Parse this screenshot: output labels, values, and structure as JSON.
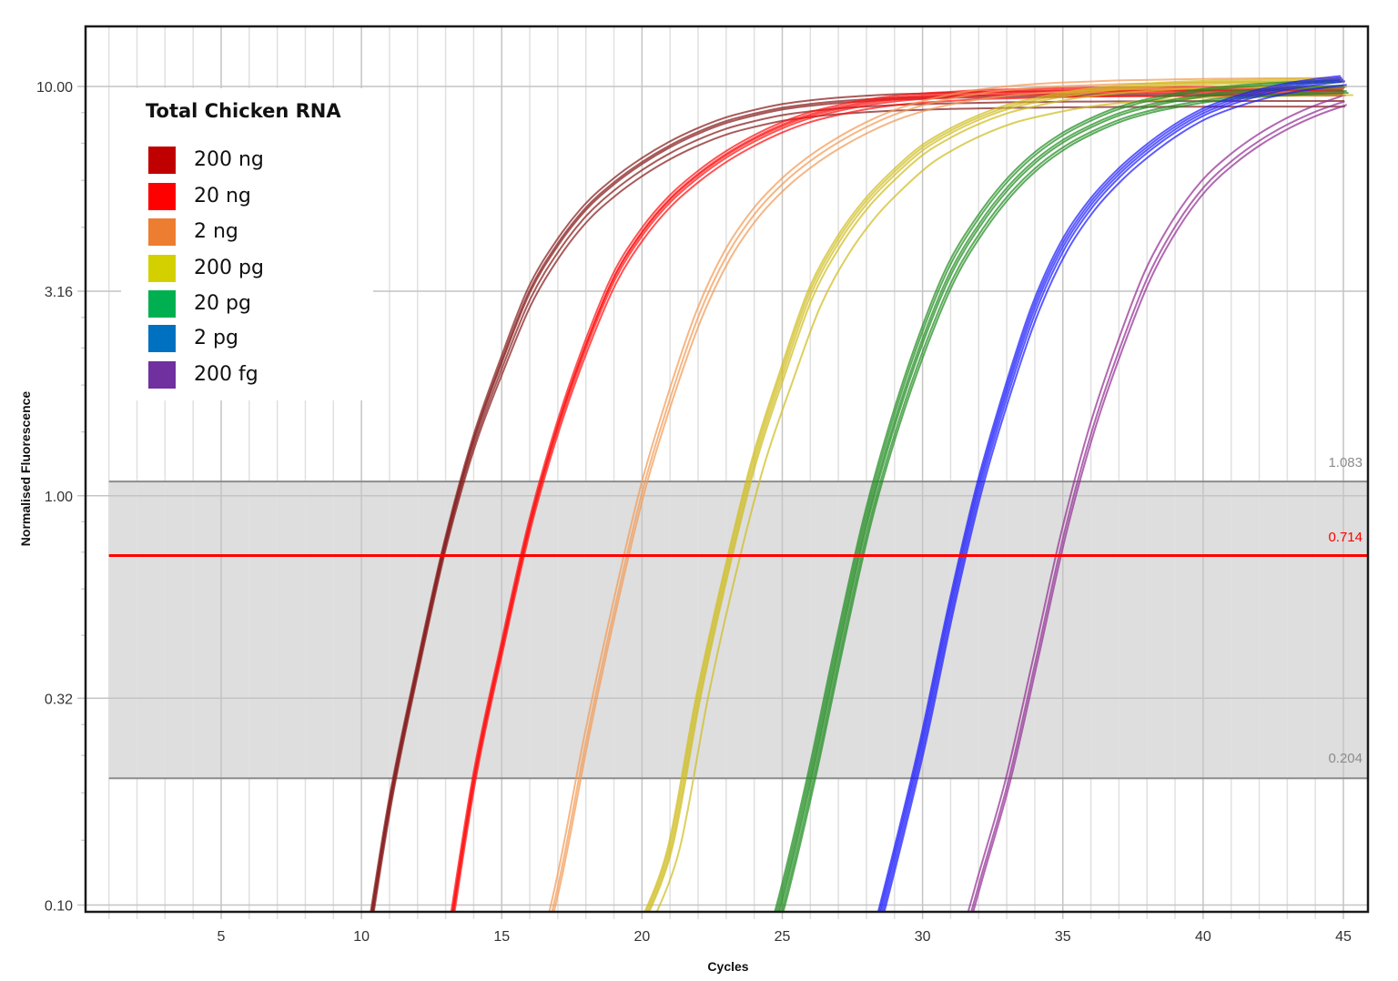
{
  "chart_data": {
    "type": "line",
    "title": "",
    "xlabel": "Cycles",
    "ylabel": "Normalised Fluorescence",
    "yscale": "log",
    "xlim": [
      1,
      45
    ],
    "ylim": [
      0.1,
      10
    ],
    "grid": true,
    "x_ticks": [
      {
        "value": 5,
        "label": "5"
      },
      {
        "value": 10,
        "label": "10"
      },
      {
        "value": 15,
        "label": "15"
      },
      {
        "value": 20,
        "label": "20"
      },
      {
        "value": 25,
        "label": "25"
      },
      {
        "value": 30,
        "label": "30"
      },
      {
        "value": 35,
        "label": "35"
      },
      {
        "value": 40,
        "label": "40"
      },
      {
        "value": 45,
        "label": "45"
      }
    ],
    "y_ticks": [
      {
        "value": 10,
        "label": "10.00"
      },
      {
        "value": 3.16,
        "label": "3.16"
      },
      {
        "value": 1,
        "label": "1.00"
      },
      {
        "value": 0.32,
        "label": "0.32"
      },
      {
        "value": 0.1,
        "label": "0.10"
      }
    ],
    "legend": {
      "title": "Total Chicken RNA",
      "position": "upper left"
    },
    "threshold": {
      "value": 0.714,
      "label": "0.714",
      "color": "#ff0000"
    },
    "threshold_band": {
      "upper": 1.083,
      "lower": 0.204,
      "upper_label": "1.083",
      "lower_label": "0.204",
      "fill": "#dedede",
      "edge_color": "#8c8c8c"
    },
    "series": [
      {
        "name": "200 ng",
        "legend_color": "#c00000",
        "line_color": "#861c1c",
        "ct": 12.88,
        "start_cycle": 10,
        "values": [
          0.065,
          0.176,
          0.38,
          0.77,
          1.36,
          2.11,
          3.13,
          4.08,
          4.99,
          5.76,
          6.46,
          7.1,
          7.66,
          8.14,
          8.49,
          8.78,
          8.97,
          9.11,
          9.21,
          9.29,
          9.33,
          9.38,
          9.4,
          9.43,
          9.44,
          9.46,
          9.47,
          9.48,
          9.48,
          9.49,
          9.49,
          9.5,
          9.5,
          9.5,
          9.5,
          9.5
        ],
        "replicates": [
          [
            -0.05,
            1.03
          ],
          [
            0,
            1.0
          ],
          [
            0.03,
            0.97
          ],
          [
            0.06,
            0.94
          ],
          [
            -0.02,
            1.01
          ]
        ]
      },
      {
        "name": "20 ng",
        "legend_color": "#ff0000",
        "line_color": "#ff1010",
        "ct": 15.7,
        "start_cycle": 13,
        "values": [
          0.075,
          0.204,
          0.43,
          0.86,
          1.49,
          2.34,
          3.41,
          4.39,
          5.29,
          6.07,
          6.79,
          7.43,
          8.0,
          8.47,
          8.81,
          9.09,
          9.29,
          9.42,
          9.51,
          9.6,
          9.64,
          9.68,
          9.71,
          9.74,
          9.75,
          9.76,
          9.77,
          9.78,
          9.78,
          9.79,
          9.79,
          9.8,
          9.8
        ],
        "replicates": [
          [
            -0.04,
            1.02
          ],
          [
            0,
            1.0
          ],
          [
            0.04,
            0.99
          ],
          [
            0.08,
            0.97
          ],
          [
            0.02,
            1.01
          ]
        ]
      },
      {
        "name": "2 ng",
        "legend_color": "#ed7d31",
        "line_color": "#f39a55",
        "ct": 19.4,
        "start_cycle": 16,
        "values": [
          0.06,
          0.115,
          0.26,
          0.54,
          1.05,
          1.78,
          2.81,
          3.93,
          4.96,
          5.87,
          6.68,
          7.41,
          8.07,
          8.65,
          9.1,
          9.45,
          9.71,
          9.9,
          10.03,
          10.12,
          10.18,
          10.24,
          10.27,
          10.3,
          10.33,
          10.35,
          10.36,
          10.37,
          10.38,
          10.38
        ],
        "replicates": [
          [
            -0.05,
            1.01
          ],
          [
            0.05,
            0.99
          ],
          [
            0.12,
            0.96
          ]
        ]
      },
      {
        "name": "200 pg",
        "legend_color": "#d4d000",
        "line_color": "#cfbd1e",
        "ct": 23.13,
        "start_cycle": 20,
        "values": [
          0.09,
          0.138,
          0.32,
          0.65,
          1.22,
          1.99,
          3.11,
          4.17,
          5.18,
          6.1,
          7.0,
          7.7,
          8.3,
          8.8,
          9.15,
          9.45,
          9.68,
          9.84,
          9.96,
          10.05,
          10.11,
          10.16,
          10.19,
          10.21,
          10.23,
          10.24
        ],
        "replicates": [
          [
            -0.08,
            1.02
          ],
          [
            -0.03,
            1.01
          ],
          [
            0.03,
            1.0
          ],
          [
            0.08,
            0.98
          ],
          [
            0.35,
            0.93
          ]
        ]
      },
      {
        "name": "20 pg",
        "legend_color": "#00b050",
        "line_color": "#1e8c1e",
        "ct": 27.7,
        "start_cycle": 24,
        "values": [
          0.06,
          0.105,
          0.204,
          0.43,
          0.87,
          1.52,
          2.42,
          3.54,
          4.6,
          5.65,
          6.6,
          7.4,
          8.05,
          8.6,
          9.0,
          9.3,
          9.55,
          9.72,
          9.84,
          9.93,
          10.0,
          10.05
        ],
        "replicates": [
          [
            -0.12,
            1.03
          ],
          [
            -0.06,
            1.02
          ],
          [
            0,
            1.0
          ],
          [
            0.05,
            0.99
          ],
          [
            0.12,
            0.97
          ],
          [
            0.18,
            0.96
          ]
        ]
      },
      {
        "name": "2 pg",
        "legend_color": "#0070c0",
        "line_color": "#1c1cff",
        "ct": 31.43,
        "start_cycle": 28,
        "values": [
          0.07,
          0.13,
          0.25,
          0.53,
          1.04,
          1.79,
          2.87,
          4.05,
          5.13,
          6.1,
          7.0,
          7.85,
          8.6,
          9.15,
          9.6,
          9.95,
          10.2,
          10.4
        ],
        "replicates": [
          [
            -0.1,
            1.02
          ],
          [
            -0.05,
            1.01
          ],
          [
            0,
            1.0
          ],
          [
            0.06,
            0.99
          ],
          [
            0.12,
            0.97
          ]
        ]
      },
      {
        "name": "200 fg",
        "legend_color": "#7030a0",
        "line_color": "#932e93",
        "ct": 34.8,
        "start_cycle": 31,
        "values": [
          0.065,
          0.115,
          0.2,
          0.4,
          0.81,
          1.45,
          2.31,
          3.45,
          4.6,
          5.7,
          6.6,
          7.4,
          8.1,
          8.7,
          9.2
        ],
        "replicates": [
          [
            -0.06,
            1.03
          ],
          [
            0.05,
            1.0
          ],
          [
            0.12,
            0.98
          ]
        ]
      }
    ]
  }
}
